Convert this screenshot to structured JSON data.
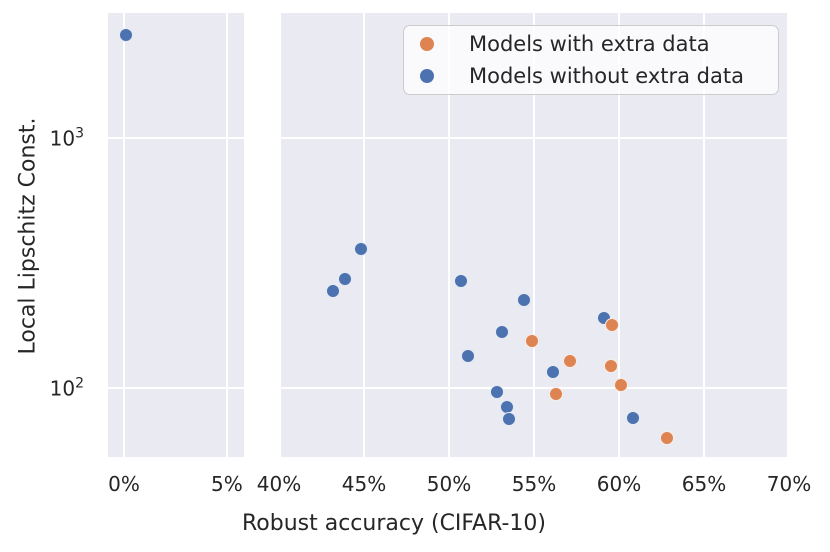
{
  "chart_data": {
    "type": "scatter",
    "title": "",
    "xlabel": "Robust accuracy (CIFAR-10)",
    "ylabel": "Local Lipschitz Const.",
    "y_scale": "log",
    "y_range": [
      53,
      3150
    ],
    "grid": true,
    "legend_position": "upper right",
    "y_ticks": [
      {
        "value": 100,
        "base": "10",
        "exponent": "2"
      },
      {
        "value": 1000,
        "base": "10",
        "exponent": "3"
      }
    ],
    "x_panels": [
      {
        "range": [
          -0.78,
          5.83
        ],
        "ticks": [
          {
            "value": 0,
            "label": "0%"
          },
          {
            "value": 5,
            "label": "5%"
          }
        ]
      },
      {
        "range": [
          40,
          70
        ],
        "ticks": [
          {
            "value": 40,
            "label": "40%"
          },
          {
            "value": 45,
            "label": "45%"
          },
          {
            "value": 50,
            "label": "50%"
          },
          {
            "value": 55,
            "label": "55%"
          },
          {
            "value": 60,
            "label": "60%"
          },
          {
            "value": 65,
            "label": "65%"
          },
          {
            "value": 70,
            "label": "70%"
          }
        ]
      }
    ],
    "series": [
      {
        "name": "Models with extra data",
        "color": "#dd8452",
        "points": [
          {
            "x": 54.9,
            "y": 154
          },
          {
            "x": 57.1,
            "y": 128
          },
          {
            "x": 56.3,
            "y": 95
          },
          {
            "x": 59.6,
            "y": 178
          },
          {
            "x": 59.5,
            "y": 122
          },
          {
            "x": 60.1,
            "y": 103
          },
          {
            "x": 62.8,
            "y": 63
          }
        ]
      },
      {
        "name": "Models without extra data",
        "color": "#4c72b0",
        "points": [
          {
            "x": 0.1,
            "y": 2570
          },
          {
            "x": 43.2,
            "y": 243
          },
          {
            "x": 43.9,
            "y": 272
          },
          {
            "x": 44.8,
            "y": 358
          },
          {
            "x": 50.7,
            "y": 267
          },
          {
            "x": 51.1,
            "y": 134
          },
          {
            "x": 52.8,
            "y": 96
          },
          {
            "x": 53.1,
            "y": 167
          },
          {
            "x": 53.4,
            "y": 84
          },
          {
            "x": 53.5,
            "y": 75
          },
          {
            "x": 54.4,
            "y": 224
          },
          {
            "x": 56.1,
            "y": 116
          },
          {
            "x": 59.1,
            "y": 190
          },
          {
            "x": 60.8,
            "y": 76
          }
        ]
      }
    ]
  },
  "legend": {
    "items": [
      {
        "label": "Models with extra data",
        "color": "#dd8452"
      },
      {
        "label": "Models without extra data",
        "color": "#4c72b0"
      }
    ]
  },
  "colors": {
    "panel_background": "#eaeaf2",
    "gridline": "#ffffff",
    "text": "#262626",
    "legend_border": "#cccccc",
    "orange": "#dd8452",
    "blue": "#4c72b0"
  }
}
